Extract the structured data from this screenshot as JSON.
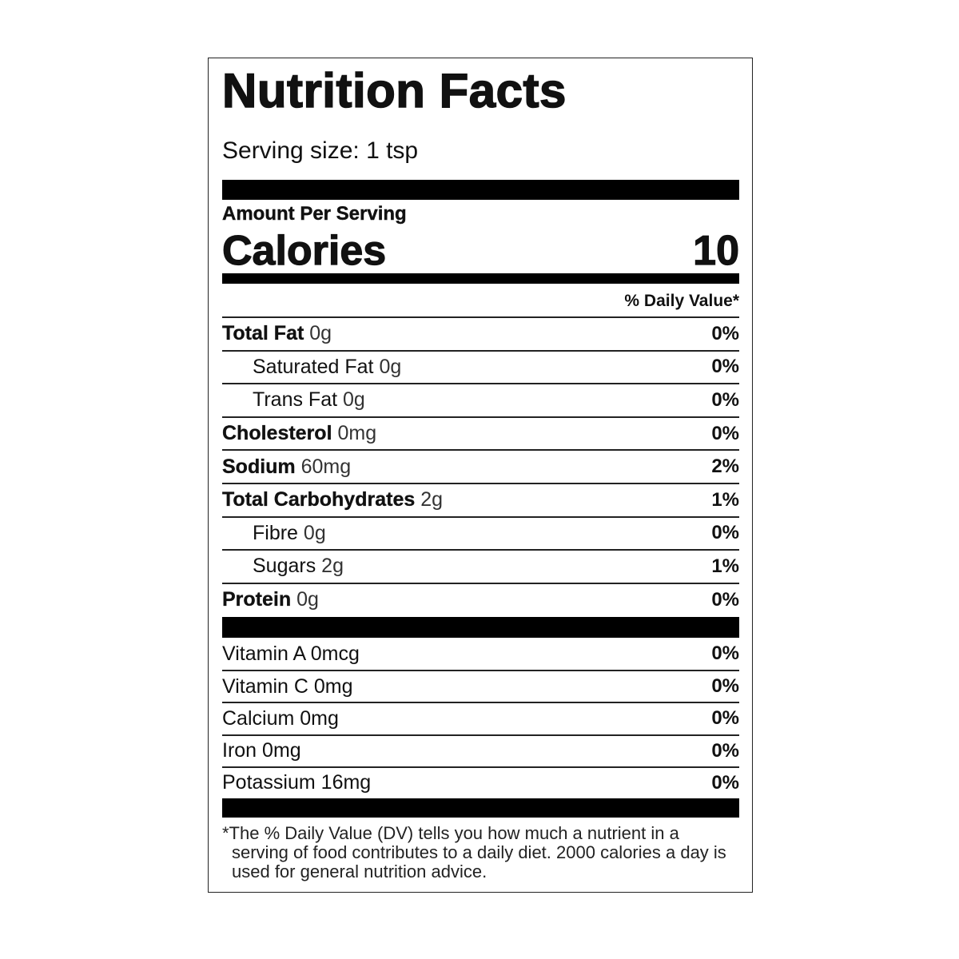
{
  "label": {
    "title": "Nutrition Facts",
    "serving_size": "Serving size: 1 tsp",
    "amount_per_serving": "Amount Per Serving",
    "calories_label": "Calories",
    "calories": 10,
    "daily_value_header": "% Daily Value*",
    "nutrients": [
      {
        "name": "Total Fat",
        "amount": "0g",
        "daily_value": "0%"
      },
      {
        "name": "Saturated Fat",
        "amount": "0g",
        "daily_value": "0%"
      },
      {
        "name": "Trans Fat",
        "amount": "0g",
        "daily_value": "0%"
      },
      {
        "name": "Cholesterol",
        "amount": "0mg",
        "daily_value": "0%"
      },
      {
        "name": "Sodium",
        "amount": "60mg",
        "daily_value": "2%"
      },
      {
        "name": "Total Carbohydrates",
        "amount": "2g",
        "daily_value": "1%"
      },
      {
        "name": "Fibre",
        "amount": "0g",
        "daily_value": "0%"
      },
      {
        "name": "Sugars",
        "amount": "2g",
        "daily_value": "1%"
      },
      {
        "name": "Protein",
        "amount": "0g",
        "daily_value": "0%"
      }
    ],
    "vitamins": [
      {
        "name": "Vitamin A",
        "amount": "0mcg",
        "daily_value": "0%"
      },
      {
        "name": "Vitamin C",
        "amount": "0mg",
        "daily_value": "0%"
      },
      {
        "name": "Calcium",
        "amount": "0mg",
        "daily_value": "0%"
      },
      {
        "name": "Iron",
        "amount": "0mg",
        "daily_value": "0%"
      },
      {
        "name": "Potassium",
        "amount": "16mg",
        "daily_value": "0%"
      }
    ],
    "footnote": "*The % Daily Value (DV) tells you how much a nutrient in a serving of food contributes to a daily diet. 2000 calories a day is used for general nutrition advice."
  }
}
